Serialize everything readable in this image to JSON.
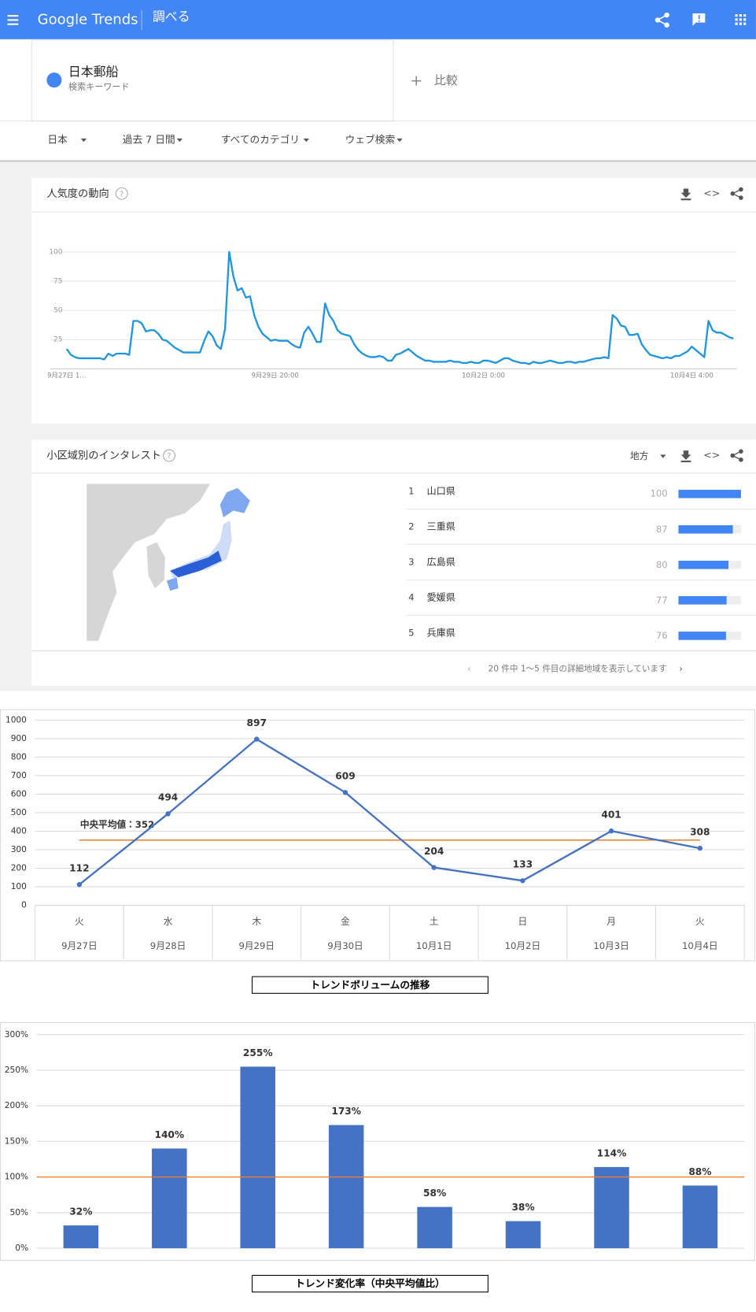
{
  "header": {
    "brand": "Google Trends",
    "section": "調べる"
  },
  "search": {
    "term": "日本郵船",
    "term_type": "検索キーワード",
    "compare": "比較"
  },
  "filters": [
    "日本",
    "過去 7 日間",
    "すべてのカテゴリ",
    "ウェブ検索"
  ],
  "interest_by_region": {
    "title": "小区域別のインタレスト",
    "resolution": "地方",
    "regions": [
      {
        "rank": 1,
        "name": "山口県",
        "value": 100
      },
      {
        "rank": 2,
        "name": "三重県",
        "value": 87
      },
      {
        "rank": 3,
        "name": "広島県",
        "value": 80
      },
      {
        "rank": 4,
        "name": "愛媛県",
        "value": 77
      },
      {
        "rank": 5,
        "name": "兵庫県",
        "value": 76
      }
    ],
    "max": 100,
    "color": "#4285f4",
    "pagination": "20 件中 1～5 件目の詳細地域を表示しています"
  },
  "chart_data": [
    {
      "type": "line",
      "title": "人気度の動向",
      "color": "#1e96e0",
      "grid": true,
      "xlim": [
        0,
        160
      ],
      "xticks": [
        {
          "value": 0,
          "label": "9月27日 1..."
        },
        {
          "value": 50,
          "label": "9月29日 20:00"
        },
        {
          "value": 100,
          "label": "10月2日 0:00"
        },
        {
          "value": 150,
          "label": "10月4日 4:00"
        }
      ],
      "ylim": [
        0,
        100
      ],
      "yticks": [
        25,
        50,
        75,
        100
      ],
      "values": [
        17,
        12,
        10,
        9,
        9,
        9,
        9,
        9,
        9,
        8,
        13,
        11,
        13,
        13,
        13,
        12,
        41,
        41,
        39,
        32,
        33,
        33,
        30,
        25,
        24,
        21,
        18,
        16,
        14,
        14,
        14,
        14,
        14,
        24,
        32,
        28,
        20,
        17,
        34,
        100,
        79,
        67,
        69,
        61,
        62,
        46,
        36,
        30,
        27,
        24,
        25,
        24,
        24,
        24,
        21,
        19,
        18,
        31,
        36,
        30,
        23,
        23,
        56,
        46,
        41,
        33,
        30,
        29,
        28,
        21,
        16,
        13,
        11,
        10,
        10,
        11,
        10,
        7,
        7,
        12,
        13,
        15,
        17,
        14,
        11,
        9,
        7,
        7,
        6,
        6,
        6,
        6,
        7,
        6,
        6,
        5,
        5,
        6,
        5,
        5,
        7,
        7,
        6,
        5,
        7,
        9,
        9,
        7,
        6,
        5,
        5,
        4,
        6,
        5,
        5,
        6,
        7,
        6,
        5,
        5,
        6,
        6,
        5,
        6,
        6,
        7,
        8,
        9,
        9,
        10,
        9,
        46,
        43,
        37,
        36,
        29,
        29,
        30,
        21,
        16,
        12,
        11,
        10,
        9,
        10,
        9,
        11,
        11,
        13,
        15,
        19,
        16,
        13,
        10,
        41,
        33,
        31,
        31,
        29,
        27,
        26
      ]
    },
    {
      "type": "line",
      "title": "トレンドボリュームの推移",
      "color": "#4472c4",
      "grid": true,
      "categories": [
        "9月27日",
        "9月28日",
        "9月29日",
        "9月30日",
        "10月1日",
        "10月2日",
        "10月3日",
        "10月4日"
      ],
      "weekdays": [
        "火",
        "水",
        "木",
        "金",
        "土",
        "日",
        "月",
        "火"
      ],
      "values": [
        112,
        494,
        897,
        609,
        204,
        133,
        401,
        308
      ],
      "ylim": [
        0,
        1000
      ],
      "yticks": [
        0,
        100,
        200,
        300,
        400,
        500,
        600,
        700,
        800,
        900,
        1000
      ],
      "reference_line": {
        "value": 352,
        "label": "中央平均値：352",
        "color": "#ed7d31"
      }
    },
    {
      "type": "bar",
      "title": "トレンド変化率（中央平均値比）",
      "color": "#4472c4",
      "grid": true,
      "values": [
        32,
        140,
        255,
        173,
        58,
        38,
        114,
        88
      ],
      "value_labels": [
        "32%",
        "140%",
        "255%",
        "173%",
        "58%",
        "38%",
        "114%",
        "88%"
      ],
      "ylim": [
        0,
        300
      ],
      "yticks": [
        {
          "value": 0,
          "label": "0%"
        },
        {
          "value": 50,
          "label": "50%"
        },
        {
          "value": 100,
          "label": "100%"
        },
        {
          "value": 150,
          "label": "150%"
        },
        {
          "value": 200,
          "label": "200%"
        },
        {
          "value": 250,
          "label": "250%"
        },
        {
          "value": 300,
          "label": "300%"
        }
      ],
      "reference_line": {
        "value": 100,
        "color": "#ed7d31"
      }
    }
  ]
}
